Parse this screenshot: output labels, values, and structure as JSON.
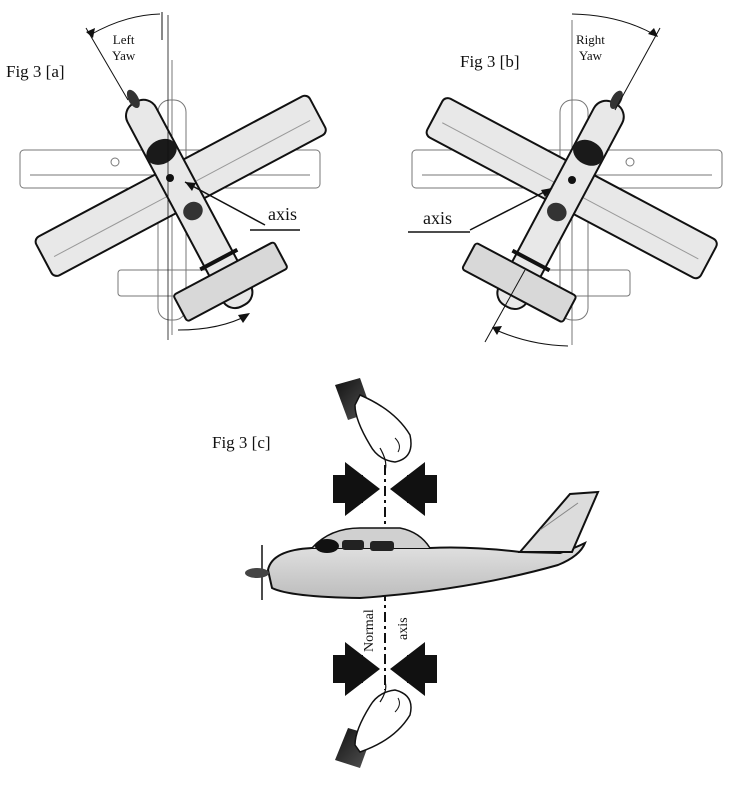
{
  "figures": {
    "a": {
      "caption": "Fig 3 [a]",
      "yaw_label_line1": "Left",
      "yaw_label_line2": "Yaw",
      "axis_label": "axis"
    },
    "b": {
      "caption": "Fig 3 [b]",
      "yaw_label_line1": "Right",
      "yaw_label_line2": "Yaw",
      "axis_label": "axis"
    },
    "c": {
      "caption": "Fig 3 [c]",
      "axis_word1": "Normal",
      "axis_word2": "axis"
    }
  },
  "colors": {
    "ink": "#111111",
    "fill_light": "#e6e6e6",
    "fill_mid": "#cfcfcf",
    "fill_dark": "#2a2a2a"
  }
}
